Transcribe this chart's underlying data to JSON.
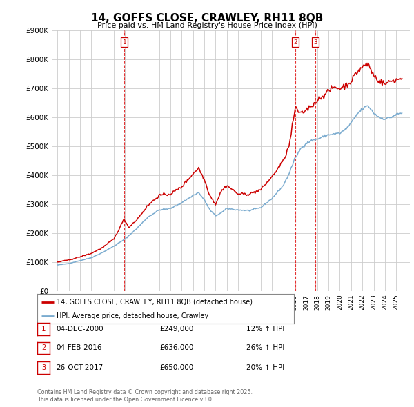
{
  "title": "14, GOFFS CLOSE, CRAWLEY, RH11 8QB",
  "subtitle": "Price paid vs. HM Land Registry's House Price Index (HPI)",
  "legend_line1": "14, GOFFS CLOSE, CRAWLEY, RH11 8QB (detached house)",
  "legend_line2": "HPI: Average price, detached house, Crawley",
  "footer1": "Contains HM Land Registry data © Crown copyright and database right 2025.",
  "footer2": "This data is licensed under the Open Government Licence v3.0.",
  "transactions": [
    {
      "num": 1,
      "date": "04-DEC-2000",
      "price": "£249,000",
      "hpi": "12% ↑ HPI",
      "year": 2000.92,
      "value": 249000
    },
    {
      "num": 2,
      "date": "04-FEB-2016",
      "price": "£636,000",
      "hpi": "26% ↑ HPI",
      "year": 2016.08,
      "value": 636000
    },
    {
      "num": 3,
      "date": "26-OCT-2017",
      "price": "£650,000",
      "hpi": "20% ↑ HPI",
      "year": 2017.82,
      "value": 650000
    }
  ],
  "ymax": 900000,
  "yticks": [
    0,
    100000,
    200000,
    300000,
    400000,
    500000,
    600000,
    700000,
    800000,
    900000
  ],
  "xmin": 1994.5,
  "xmax": 2026.2,
  "red_color": "#cc0000",
  "blue_color": "#7aabcf",
  "bg_color": "#ffffff",
  "grid_color": "#cccccc",
  "hpi_anchors": [
    [
      1995.0,
      90000
    ],
    [
      1996.0,
      95000
    ],
    [
      1997.0,
      105000
    ],
    [
      1998.0,
      115000
    ],
    [
      1999.0,
      133000
    ],
    [
      2000.0,
      155000
    ],
    [
      2001.0,
      180000
    ],
    [
      2002.0,
      215000
    ],
    [
      2003.0,
      255000
    ],
    [
      2004.0,
      280000
    ],
    [
      2005.0,
      285000
    ],
    [
      2006.0,
      305000
    ],
    [
      2007.0,
      330000
    ],
    [
      2007.5,
      340000
    ],
    [
      2008.0,
      315000
    ],
    [
      2008.5,
      280000
    ],
    [
      2009.0,
      260000
    ],
    [
      2009.5,
      270000
    ],
    [
      2010.0,
      285000
    ],
    [
      2011.0,
      280000
    ],
    [
      2012.0,
      278000
    ],
    [
      2013.0,
      288000
    ],
    [
      2014.0,
      320000
    ],
    [
      2015.0,
      365000
    ],
    [
      2015.5,
      405000
    ],
    [
      2016.0,
      455000
    ],
    [
      2016.5,
      490000
    ],
    [
      2017.0,
      510000
    ],
    [
      2017.5,
      520000
    ],
    [
      2018.0,
      525000
    ],
    [
      2019.0,
      540000
    ],
    [
      2020.0,
      545000
    ],
    [
      2020.5,
      558000
    ],
    [
      2021.0,
      580000
    ],
    [
      2021.5,
      610000
    ],
    [
      2022.0,
      630000
    ],
    [
      2022.5,
      640000
    ],
    [
      2023.0,
      615000
    ],
    [
      2023.5,
      600000
    ],
    [
      2024.0,
      595000
    ],
    [
      2024.5,
      600000
    ],
    [
      2025.0,
      610000
    ],
    [
      2025.5,
      615000
    ]
  ],
  "prop_anchors": [
    [
      1995.0,
      100000
    ],
    [
      1996.0,
      107000
    ],
    [
      1997.0,
      118000
    ],
    [
      1998.0,
      130000
    ],
    [
      1999.0,
      150000
    ],
    [
      2000.0,
      180000
    ],
    [
      2000.92,
      249000
    ],
    [
      2001.3,
      220000
    ],
    [
      2002.0,
      245000
    ],
    [
      2003.0,
      295000
    ],
    [
      2004.0,
      330000
    ],
    [
      2005.0,
      335000
    ],
    [
      2006.0,
      360000
    ],
    [
      2007.0,
      405000
    ],
    [
      2007.5,
      425000
    ],
    [
      2008.0,
      385000
    ],
    [
      2008.5,
      330000
    ],
    [
      2009.0,
      300000
    ],
    [
      2009.5,
      345000
    ],
    [
      2010.0,
      365000
    ],
    [
      2010.5,
      350000
    ],
    [
      2011.0,
      335000
    ],
    [
      2012.0,
      335000
    ],
    [
      2013.0,
      350000
    ],
    [
      2014.0,
      395000
    ],
    [
      2015.0,
      450000
    ],
    [
      2015.5,
      500000
    ],
    [
      2016.08,
      636000
    ],
    [
      2016.5,
      610000
    ],
    [
      2017.0,
      625000
    ],
    [
      2017.82,
      650000
    ],
    [
      2018.0,
      660000
    ],
    [
      2018.5,
      675000
    ],
    [
      2019.0,
      690000
    ],
    [
      2019.5,
      705000
    ],
    [
      2020.0,
      700000
    ],
    [
      2020.5,
      710000
    ],
    [
      2021.0,
      725000
    ],
    [
      2021.5,
      755000
    ],
    [
      2022.0,
      775000
    ],
    [
      2022.5,
      785000
    ],
    [
      2023.0,
      745000
    ],
    [
      2023.5,
      725000
    ],
    [
      2024.0,
      715000
    ],
    [
      2024.5,
      725000
    ],
    [
      2025.0,
      730000
    ],
    [
      2025.5,
      735000
    ]
  ]
}
